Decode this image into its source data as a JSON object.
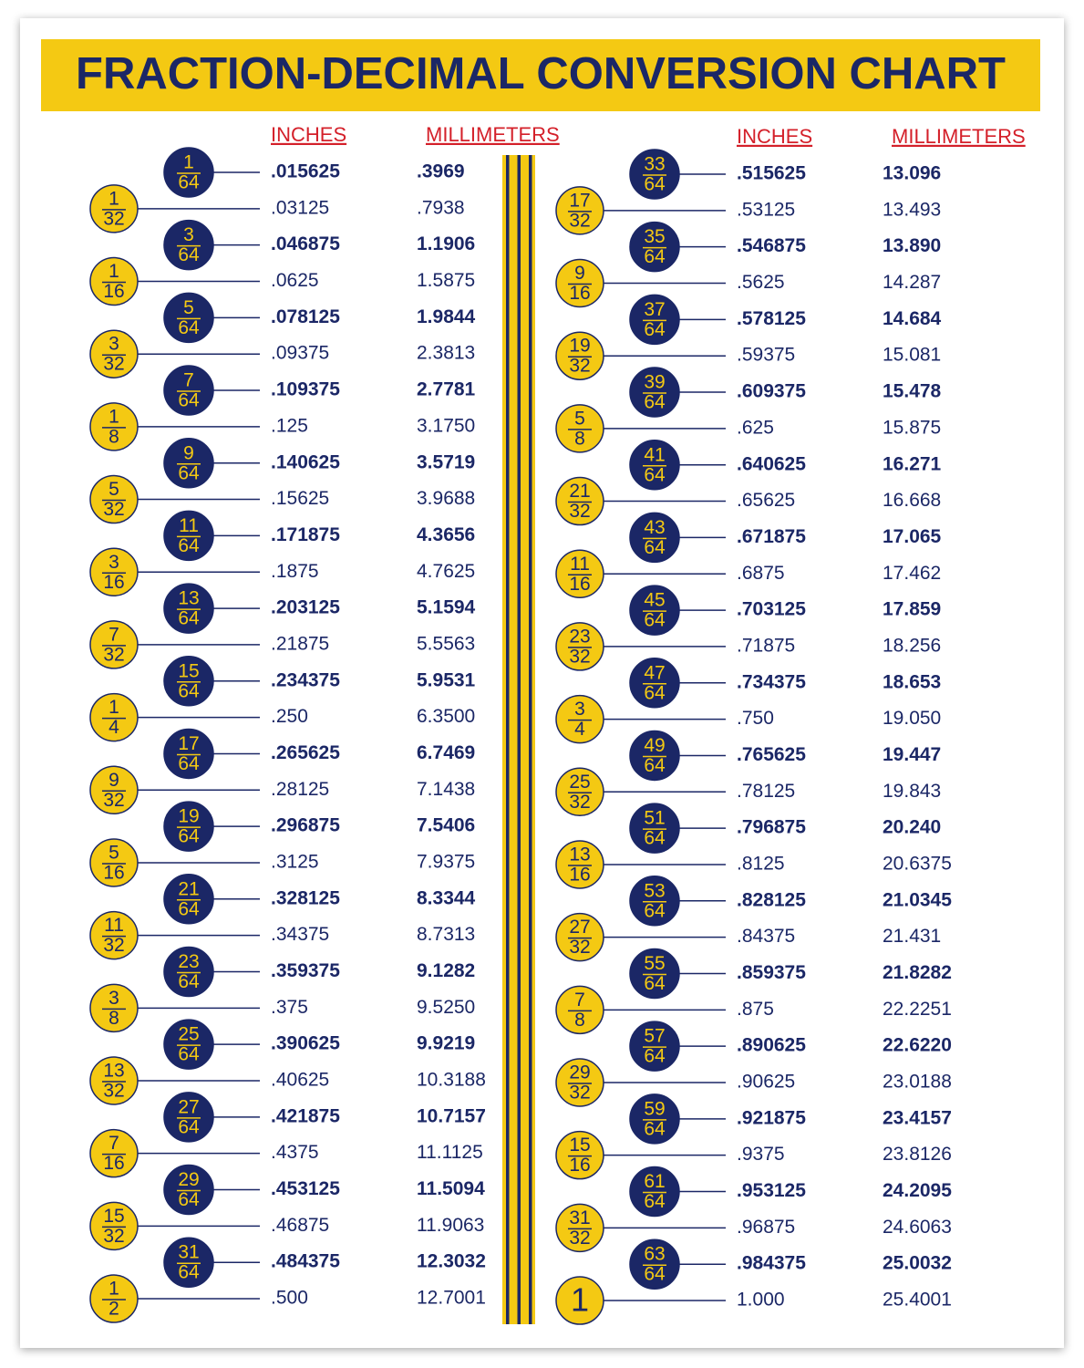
{
  "title": "FRACTION-DECIMAL CONVERSION CHART",
  "columns": [
    {
      "headers": {
        "inches": "INCHES",
        "millimeters": "MILLIMETERS"
      },
      "rows": [
        {
          "fraction": [
            "1",
            "64"
          ],
          "inches": ".015625",
          "mm": ".3969"
        },
        {
          "fraction": [
            "1",
            "32"
          ],
          "inches": ".03125",
          "mm": ".7938"
        },
        {
          "fraction": [
            "3",
            "64"
          ],
          "inches": ".046875",
          "mm": "1.1906"
        },
        {
          "fraction": [
            "1",
            "16"
          ],
          "inches": ".0625",
          "mm": "1.5875"
        },
        {
          "fraction": [
            "5",
            "64"
          ],
          "inches": ".078125",
          "mm": "1.9844"
        },
        {
          "fraction": [
            "3",
            "32"
          ],
          "inches": ".09375",
          "mm": "2.3813"
        },
        {
          "fraction": [
            "7",
            "64"
          ],
          "inches": ".109375",
          "mm": "2.7781"
        },
        {
          "fraction": [
            "1",
            "8"
          ],
          "inches": ".125",
          "mm": "3.1750"
        },
        {
          "fraction": [
            "9",
            "64"
          ],
          "inches": ".140625",
          "mm": "3.5719"
        },
        {
          "fraction": [
            "5",
            "32"
          ],
          "inches": ".15625",
          "mm": "3.9688"
        },
        {
          "fraction": [
            "11",
            "64"
          ],
          "inches": ".171875",
          "mm": "4.3656"
        },
        {
          "fraction": [
            "3",
            "16"
          ],
          "inches": ".1875",
          "mm": "4.7625"
        },
        {
          "fraction": [
            "13",
            "64"
          ],
          "inches": ".203125",
          "mm": "5.1594"
        },
        {
          "fraction": [
            "7",
            "32"
          ],
          "inches": ".21875",
          "mm": "5.5563"
        },
        {
          "fraction": [
            "15",
            "64"
          ],
          "inches": ".234375",
          "mm": "5.9531"
        },
        {
          "fraction": [
            "1",
            "4"
          ],
          "inches": ".250",
          "mm": "6.3500"
        },
        {
          "fraction": [
            "17",
            "64"
          ],
          "inches": ".265625",
          "mm": "6.7469"
        },
        {
          "fraction": [
            "9",
            "32"
          ],
          "inches": ".28125",
          "mm": "7.1438"
        },
        {
          "fraction": [
            "19",
            "64"
          ],
          "inches": ".296875",
          "mm": "7.5406"
        },
        {
          "fraction": [
            "5",
            "16"
          ],
          "inches": ".3125",
          "mm": "7.9375"
        },
        {
          "fraction": [
            "21",
            "64"
          ],
          "inches": ".328125",
          "mm": "8.3344"
        },
        {
          "fraction": [
            "11",
            "32"
          ],
          "inches": ".34375",
          "mm": "8.7313"
        },
        {
          "fraction": [
            "23",
            "64"
          ],
          "inches": ".359375",
          "mm": "9.1282"
        },
        {
          "fraction": [
            "3",
            "8"
          ],
          "inches": ".375",
          "mm": "9.5250"
        },
        {
          "fraction": [
            "25",
            "64"
          ],
          "inches": ".390625",
          "mm": "9.9219"
        },
        {
          "fraction": [
            "13",
            "32"
          ],
          "inches": ".40625",
          "mm": "10.3188"
        },
        {
          "fraction": [
            "27",
            "64"
          ],
          "inches": ".421875",
          "mm": "10.7157"
        },
        {
          "fraction": [
            "7",
            "16"
          ],
          "inches": ".4375",
          "mm": "11.1125"
        },
        {
          "fraction": [
            "29",
            "64"
          ],
          "inches": ".453125",
          "mm": "11.5094"
        },
        {
          "fraction": [
            "15",
            "32"
          ],
          "inches": ".46875",
          "mm": "11.9063"
        },
        {
          "fraction": [
            "31",
            "64"
          ],
          "inches": ".484375",
          "mm": "12.3032"
        },
        {
          "fraction": [
            "1",
            "2"
          ],
          "inches": ".500",
          "mm": "12.7001"
        }
      ]
    },
    {
      "headers": {
        "inches": "INCHES",
        "millimeters": "MILLIMETERS"
      },
      "rows": [
        {
          "fraction": [
            "33",
            "64"
          ],
          "inches": ".515625",
          "mm": "13.096"
        },
        {
          "fraction": [
            "17",
            "32"
          ],
          "inches": ".53125",
          "mm": "13.493"
        },
        {
          "fraction": [
            "35",
            "64"
          ],
          "inches": ".546875",
          "mm": "13.890"
        },
        {
          "fraction": [
            "9",
            "16"
          ],
          "inches": ".5625",
          "mm": "14.287"
        },
        {
          "fraction": [
            "37",
            "64"
          ],
          "inches": ".578125",
          "mm": "14.684"
        },
        {
          "fraction": [
            "19",
            "32"
          ],
          "inches": ".59375",
          "mm": "15.081"
        },
        {
          "fraction": [
            "39",
            "64"
          ],
          "inches": ".609375",
          "mm": "15.478"
        },
        {
          "fraction": [
            "5",
            "8"
          ],
          "inches": ".625",
          "mm": "15.875"
        },
        {
          "fraction": [
            "41",
            "64"
          ],
          "inches": ".640625",
          "mm": "16.271"
        },
        {
          "fraction": [
            "21",
            "32"
          ],
          "inches": ".65625",
          "mm": "16.668"
        },
        {
          "fraction": [
            "43",
            "64"
          ],
          "inches": ".671875",
          "mm": "17.065"
        },
        {
          "fraction": [
            "11",
            "16"
          ],
          "inches": ".6875",
          "mm": "17.462"
        },
        {
          "fraction": [
            "45",
            "64"
          ],
          "inches": ".703125",
          "mm": "17.859"
        },
        {
          "fraction": [
            "23",
            "32"
          ],
          "inches": ".71875",
          "mm": "18.256"
        },
        {
          "fraction": [
            "47",
            "64"
          ],
          "inches": ".734375",
          "mm": "18.653"
        },
        {
          "fraction": [
            "3",
            "4"
          ],
          "inches": ".750",
          "mm": "19.050"
        },
        {
          "fraction": [
            "49",
            "64"
          ],
          "inches": ".765625",
          "mm": "19.447"
        },
        {
          "fraction": [
            "25",
            "32"
          ],
          "inches": ".78125",
          "mm": "19.843"
        },
        {
          "fraction": [
            "51",
            "64"
          ],
          "inches": ".796875",
          "mm": "20.240"
        },
        {
          "fraction": [
            "13",
            "16"
          ],
          "inches": ".8125",
          "mm": "20.6375"
        },
        {
          "fraction": [
            "53",
            "64"
          ],
          "inches": ".828125",
          "mm": "21.0345"
        },
        {
          "fraction": [
            "27",
            "32"
          ],
          "inches": ".84375",
          "mm": "21.431"
        },
        {
          "fraction": [
            "55",
            "64"
          ],
          "inches": ".859375",
          "mm": "21.8282"
        },
        {
          "fraction": [
            "7",
            "8"
          ],
          "inches": ".875",
          "mm": "22.2251"
        },
        {
          "fraction": [
            "57",
            "64"
          ],
          "inches": ".890625",
          "mm": "22.6220"
        },
        {
          "fraction": [
            "29",
            "32"
          ],
          "inches": ".90625",
          "mm": "23.0188"
        },
        {
          "fraction": [
            "59",
            "64"
          ],
          "inches": ".921875",
          "mm": "23.4157"
        },
        {
          "fraction": [
            "15",
            "16"
          ],
          "inches": ".9375",
          "mm": "23.8126"
        },
        {
          "fraction": [
            "61",
            "64"
          ],
          "inches": ".953125",
          "mm": "24.2095"
        },
        {
          "fraction": [
            "31",
            "32"
          ],
          "inches": ".96875",
          "mm": "24.6063"
        },
        {
          "fraction": [
            "63",
            "64"
          ],
          "inches": ".984375",
          "mm": "25.0032"
        },
        {
          "fraction": [
            "1"
          ],
          "inches": "1.000",
          "mm": "25.4001"
        }
      ]
    }
  ]
}
